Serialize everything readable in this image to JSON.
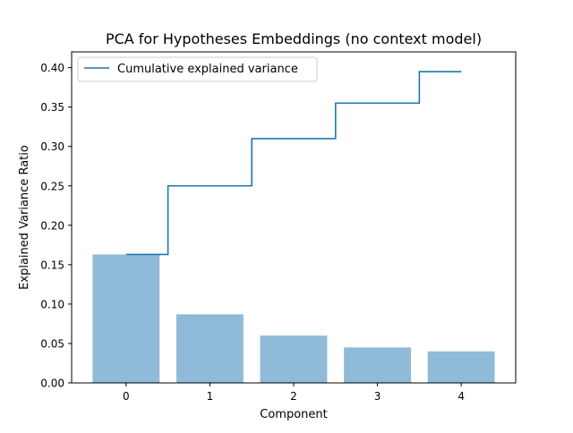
{
  "chart_data": {
    "type": "bar",
    "title": "PCA for Hypotheses Embeddings (no context model)",
    "xlabel": "Component",
    "ylabel": "Explained Variance Ratio",
    "categories": [
      "0",
      "1",
      "2",
      "3",
      "4"
    ],
    "x_ticks": [
      "0",
      "1",
      "2",
      "3",
      "4"
    ],
    "y_ticks": [
      "0.00",
      "0.05",
      "0.10",
      "0.15",
      "0.20",
      "0.25",
      "0.30",
      "0.35",
      "0.40"
    ],
    "ylim": [
      0,
      0.42
    ],
    "xlim": [
      -0.65,
      4.65
    ],
    "grid": false,
    "legend_position": "top-left",
    "series": [
      {
        "kind": "bar",
        "values": [
          0.163,
          0.087,
          0.06,
          0.045,
          0.04
        ],
        "color": "#8fbbd9"
      },
      {
        "kind": "step",
        "name": "Cumulative explained variance",
        "values": [
          0.163,
          0.25,
          0.31,
          0.355,
          0.395
        ],
        "color": "#1f77b4"
      }
    ]
  }
}
